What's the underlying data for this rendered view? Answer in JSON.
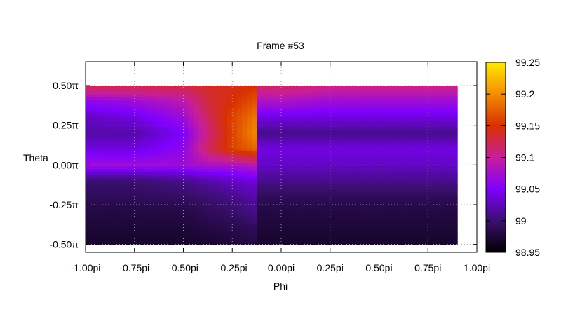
{
  "chart_data": {
    "type": "heatmap",
    "title": "Frame #53",
    "xlabel": "Phi",
    "ylabel": "Theta",
    "x_range_pi": [
      -1.0,
      1.0
    ],
    "y_range_pi": [
      -0.55,
      0.65
    ],
    "data_extent_x_pi": [
      -1.0,
      0.9
    ],
    "data_extent_y_pi": [
      -0.5,
      0.5
    ],
    "x_ticks": [
      {
        "value_pi": -1.0,
        "label": "-1.00pi"
      },
      {
        "value_pi": -0.75,
        "label": "-0.75pi"
      },
      {
        "value_pi": -0.5,
        "label": "-0.50pi"
      },
      {
        "value_pi": -0.25,
        "label": "-0.25pi"
      },
      {
        "value_pi": 0.0,
        "label": "0.00pi"
      },
      {
        "value_pi": 0.25,
        "label": "0.25pi"
      },
      {
        "value_pi": 0.5,
        "label": "0.50pi"
      },
      {
        "value_pi": 0.75,
        "label": "0.75pi"
      },
      {
        "value_pi": 1.0,
        "label": "1.00pi"
      }
    ],
    "y_ticks": [
      {
        "value_pi": 0.5,
        "label": "0.50π"
      },
      {
        "value_pi": 0.25,
        "label": "0.25π"
      },
      {
        "value_pi": 0.0,
        "label": "0.00π"
      },
      {
        "value_pi": -0.25,
        "label": "-0.25π"
      },
      {
        "value_pi": -0.5,
        "label": "-0.50π"
      }
    ],
    "grid": true,
    "colorbar": {
      "range": [
        98.95,
        99.25
      ],
      "ticks": [
        {
          "value": 99.25,
          "label": "99.25"
        },
        {
          "value": 99.2,
          "label": "99.2"
        },
        {
          "value": 99.15,
          "label": "99.15"
        },
        {
          "value": 99.1,
          "label": "99.1"
        },
        {
          "value": 99.05,
          "label": "99.05"
        },
        {
          "value": 99.0,
          "label": "99"
        },
        {
          "value": 98.95,
          "label": "98.95"
        }
      ],
      "palette": [
        "#000000",
        "#3b0f70",
        "#7f00ff",
        "#c81e9b",
        "#d73000",
        "#f58c00",
        "#ffe800"
      ]
    },
    "theta_pi": [
      0.5,
      0.4,
      0.3,
      0.2,
      0.1,
      0.0,
      -0.1,
      -0.2,
      -0.3,
      -0.4,
      -0.5
    ],
    "phi_pi": [
      -1.0,
      -0.75,
      -0.5,
      -0.375,
      -0.25,
      -0.125,
      0.0,
      0.25,
      0.5,
      0.75,
      0.9
    ],
    "values": [
      [
        99.13,
        99.13,
        99.13,
        99.14,
        99.14,
        99.15,
        99.12,
        99.11,
        99.11,
        99.11,
        99.11
      ],
      [
        99.06,
        99.07,
        99.09,
        99.13,
        99.15,
        99.17,
        99.08,
        99.07,
        99.07,
        99.07,
        99.07
      ],
      [
        99.03,
        99.04,
        99.07,
        99.12,
        99.16,
        99.19,
        99.04,
        99.04,
        99.04,
        99.04,
        99.04
      ],
      [
        99.02,
        99.02,
        99.05,
        99.11,
        99.16,
        99.2,
        99.01,
        99.01,
        99.01,
        99.01,
        99.01
      ],
      [
        99.04,
        99.04,
        99.06,
        99.12,
        99.16,
        99.18,
        99.04,
        99.04,
        99.04,
        99.04,
        99.04
      ],
      [
        99.07,
        99.07,
        99.07,
        99.08,
        99.08,
        99.09,
        99.03,
        99.03,
        99.03,
        99.03,
        99.03
      ],
      [
        99.0,
        99.0,
        99.01,
        99.02,
        99.03,
        99.04,
        99.01,
        99.01,
        99.01,
        99.01,
        99.01
      ],
      [
        98.99,
        98.99,
        98.995,
        99.0,
        99.01,
        99.02,
        98.99,
        98.99,
        98.99,
        98.99,
        98.99
      ],
      [
        98.98,
        98.98,
        98.98,
        98.99,
        98.995,
        99.01,
        98.98,
        98.98,
        98.98,
        98.98,
        98.98
      ],
      [
        98.975,
        98.975,
        98.975,
        98.98,
        98.985,
        98.99,
        98.975,
        98.975,
        98.975,
        98.975,
        98.975
      ],
      [
        98.97,
        98.97,
        98.97,
        98.97,
        98.975,
        98.98,
        98.97,
        98.97,
        98.97,
        98.97,
        98.97
      ]
    ]
  }
}
